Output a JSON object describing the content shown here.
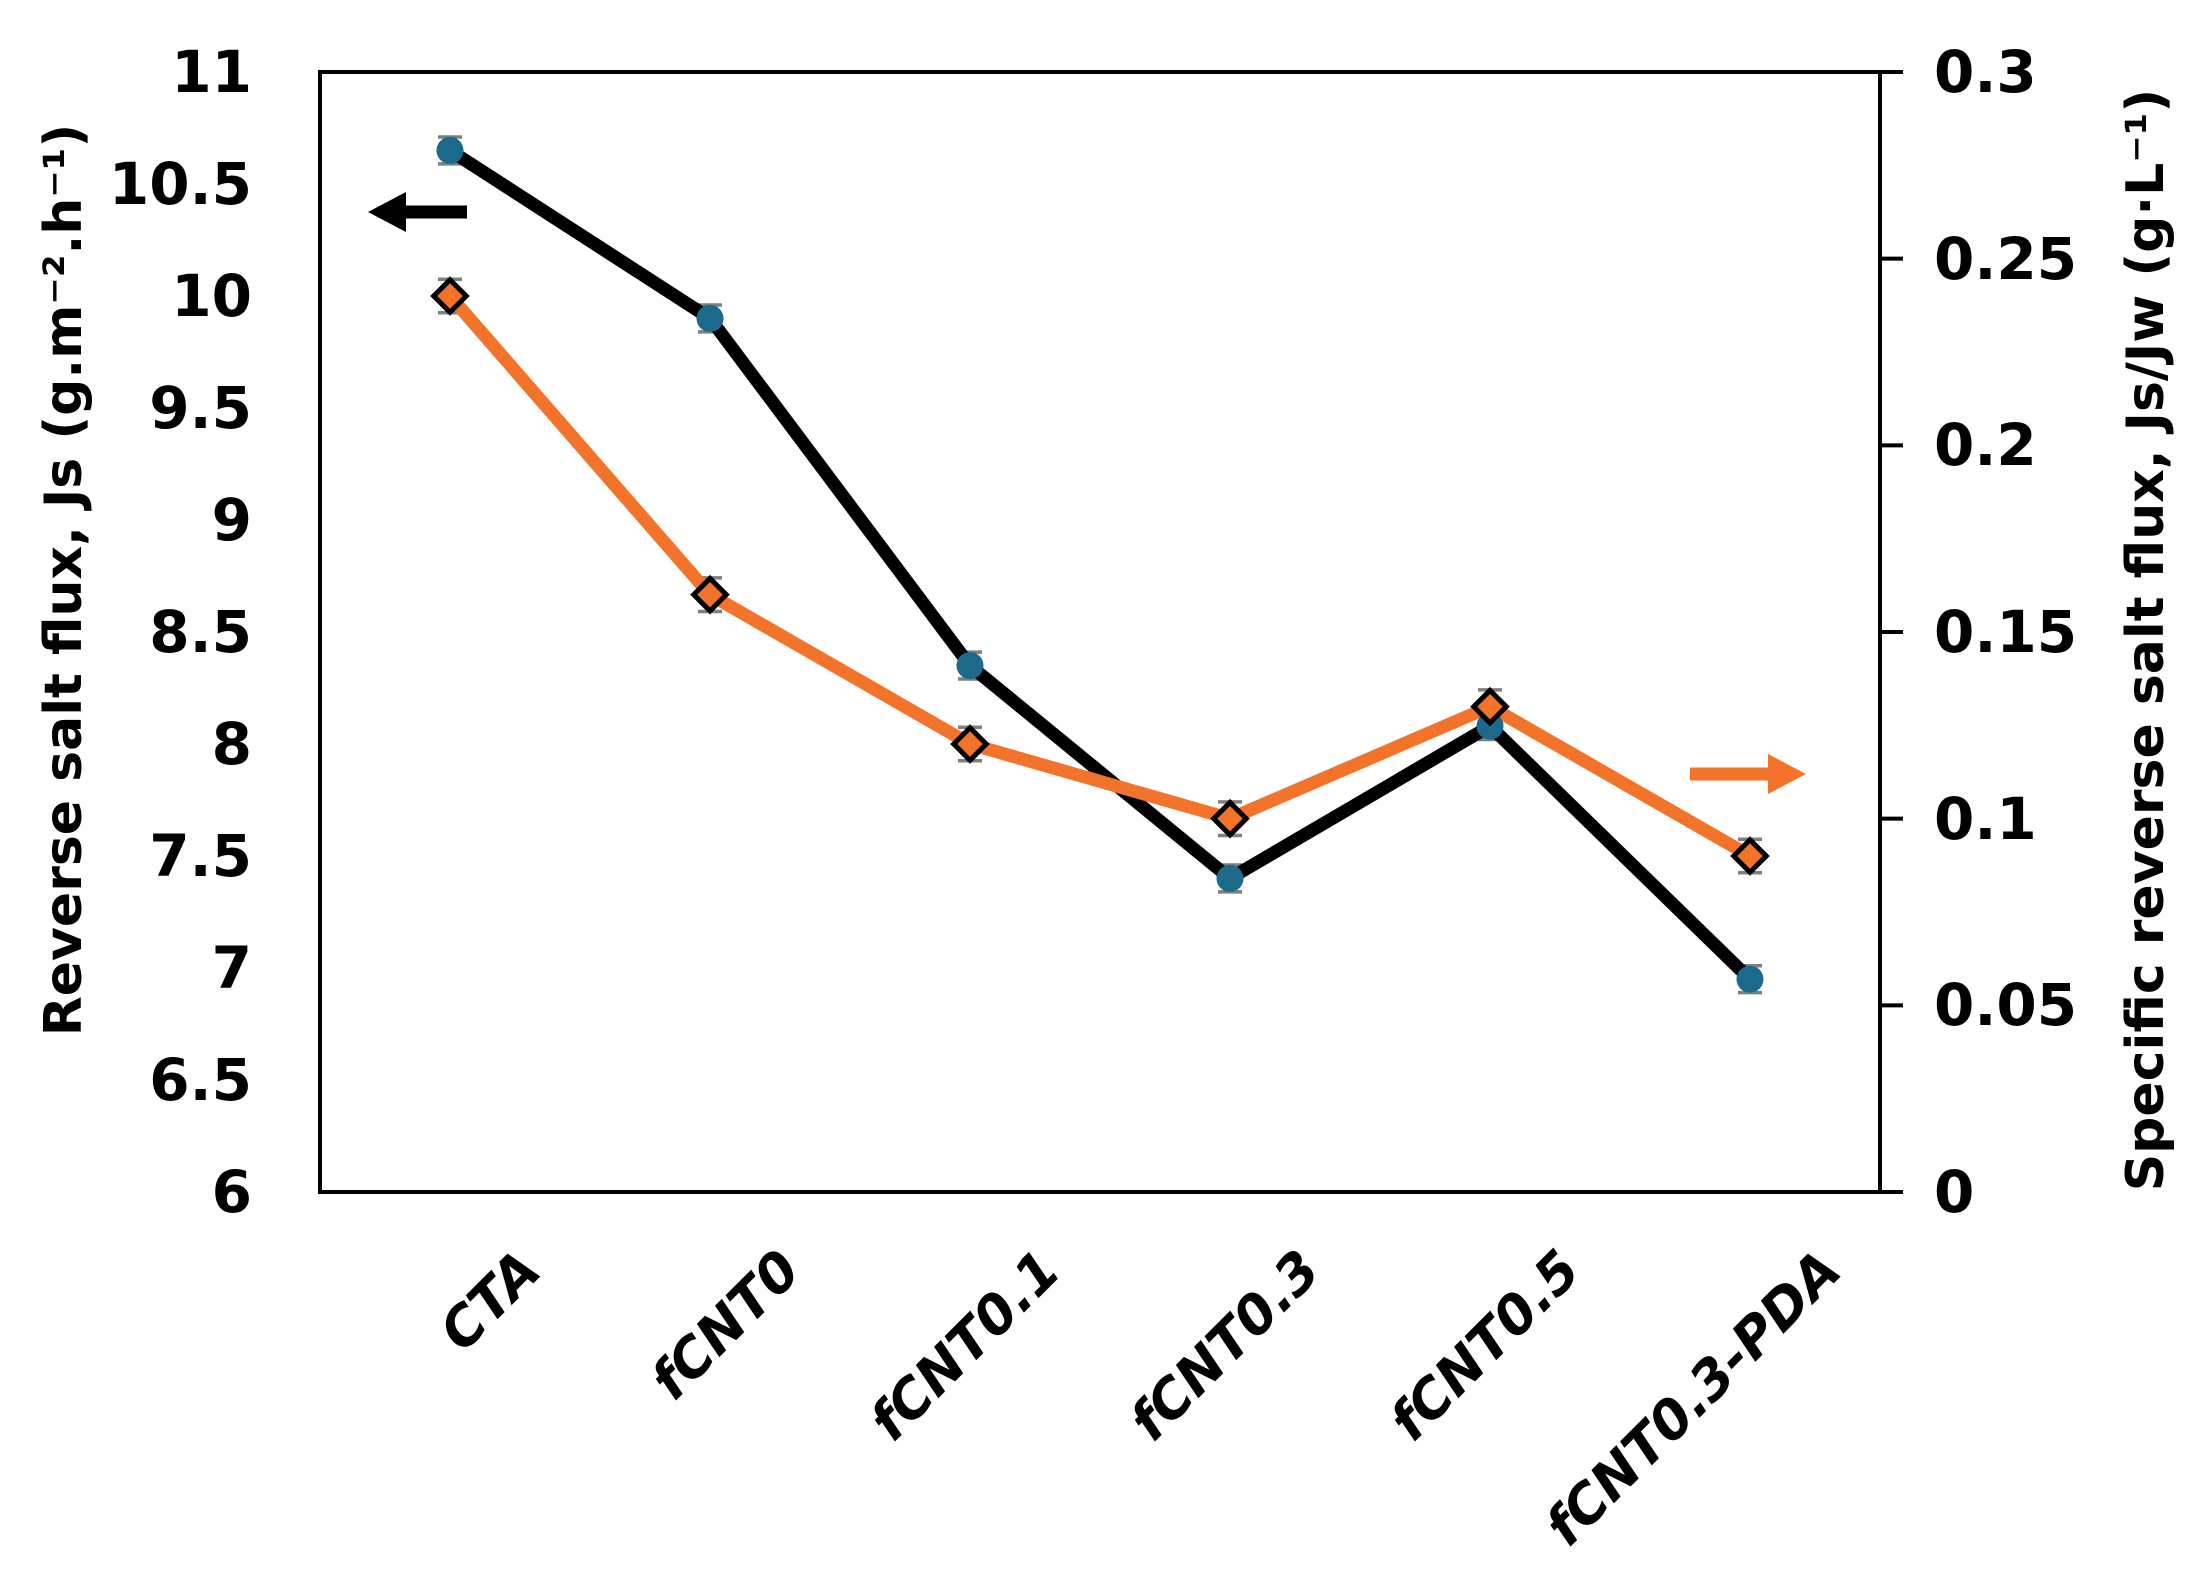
{
  "chart_data": {
    "type": "line",
    "title": "",
    "categories": [
      "CTA",
      "fCNT0",
      "fCNT0.1",
      "fCNT0.3",
      "fCNT0.5",
      "fCNT0.3-PDA"
    ],
    "series": [
      {
        "name": "Reverse salt flux, Js",
        "yaxis": "left",
        "line_color": "#000000",
        "line_width": 13,
        "marker": "circle",
        "marker_color": "#1B6A8C",
        "values": [
          10.65,
          9.9,
          8.35,
          7.4,
          8.08,
          6.95
        ],
        "error_bar": 0.06
      },
      {
        "name": "Specific reverse salt flux, Js/Jw",
        "yaxis": "right",
        "line_color": "#F3732B",
        "line_width": 13,
        "marker": "diamond",
        "marker_color": "#F3732B",
        "marker_outline_color": "#000000",
        "values": [
          0.24,
          0.16,
          0.12,
          0.1,
          0.13,
          0.09
        ],
        "error_bar": 0.0045
      }
    ],
    "left_axis": {
      "label": "Reverse salt flux, Js (g.m⁻².h⁻¹)",
      "min": 6,
      "max": 11,
      "step": 0.5,
      "ticks": [
        {
          "label": "11",
          "value": 11
        },
        {
          "label": "10.5",
          "value": 10.5
        },
        {
          "label": "10",
          "value": 10
        },
        {
          "label": "9.5",
          "value": 9.5
        },
        {
          "label": "9",
          "value": 9
        },
        {
          "label": "8.5",
          "value": 8.5
        },
        {
          "label": "8",
          "value": 8
        },
        {
          "label": "7.5",
          "value": 7.5
        },
        {
          "label": "7",
          "value": 7
        },
        {
          "label": "6.5",
          "value": 6.5
        },
        {
          "label": "6",
          "value": 6
        }
      ]
    },
    "right_axis": {
      "label": "Specific reverse salt flux, Js/Jw (g·L⁻¹)",
      "min": 0,
      "max": 0.3,
      "step": 0.05,
      "ticks": [
        {
          "label": "0.3",
          "value": 0.3
        },
        {
          "label": "0.25",
          "value": 0.25
        },
        {
          "label": "0.2",
          "value": 0.2
        },
        {
          "label": "0.15",
          "value": 0.15
        },
        {
          "label": "0.1",
          "value": 0.1
        },
        {
          "label": "0.05",
          "value": 0.05
        },
        {
          "label": "0",
          "value": 0
        }
      ]
    },
    "annotations": [
      {
        "type": "arrow",
        "direction": "left",
        "points_to": "left-axis",
        "color": "#000000"
      },
      {
        "type": "arrow",
        "direction": "right",
        "points_to": "right-axis",
        "color": "#F3732B"
      }
    ],
    "error_bar_color": "#7F7F7F",
    "grid": false,
    "legend": "none",
    "background": "#FFFFFF"
  }
}
